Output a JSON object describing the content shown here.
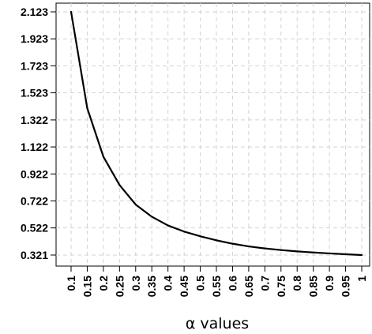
{
  "chart_data": {
    "type": "line",
    "title": "",
    "xlabel": "α values",
    "ylabel": "",
    "x": [
      0.1,
      0.15,
      0.2,
      0.25,
      0.3,
      0.35,
      0.4,
      0.45,
      0.5,
      0.55,
      0.6,
      0.65,
      0.7,
      0.75,
      0.8,
      0.85,
      0.9,
      0.95,
      1
    ],
    "x_tick_labels": [
      "0.1",
      "0.15",
      "0.2",
      "0.25",
      "0.3",
      "0.35",
      "0.4",
      "0.45",
      "0.5",
      "0.55",
      "0.6",
      "0.65",
      "0.7",
      "0.75",
      "0.8",
      "0.85",
      "0.9",
      "0.95",
      "1"
    ],
    "y_ticks": [
      0.321,
      0.522,
      0.722,
      0.922,
      1.122,
      1.322,
      1.523,
      1.723,
      1.923,
      2.123
    ],
    "y_tick_labels": [
      "0.321",
      "0.522",
      "0.722",
      "0.922",
      "1.122",
      "1.322",
      "1.523",
      "1.723",
      "1.923",
      "2.123"
    ],
    "series": [
      {
        "values": [
          2.123,
          1.41,
          1.05,
          0.84,
          0.695,
          0.605,
          0.54,
          0.495,
          0.46,
          0.43,
          0.405,
          0.385,
          0.37,
          0.358,
          0.348,
          0.34,
          0.333,
          0.327,
          0.321
        ]
      }
    ],
    "xlim": [
      0.1,
      1
    ],
    "ylim": [
      0.321,
      2.123
    ],
    "grid": true,
    "line_color": "#000000",
    "grid_color": "#d3d3d3"
  }
}
